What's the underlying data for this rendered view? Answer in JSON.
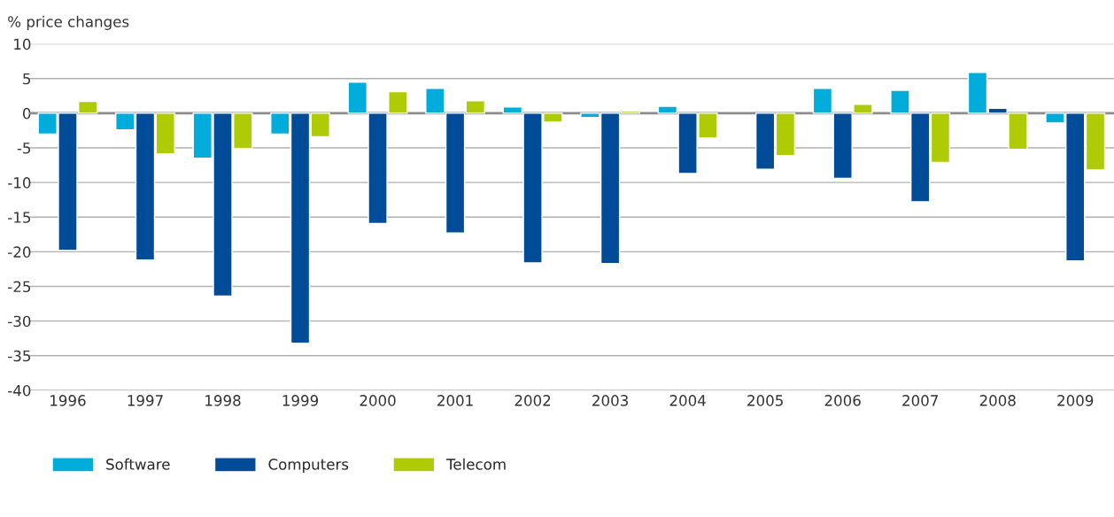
{
  "chart_data": {
    "type": "bar",
    "ylabel": "% price changes",
    "categories": [
      "1996",
      "1997",
      "1998",
      "1999",
      "2000",
      "2001",
      "2002",
      "2003",
      "2004",
      "2005",
      "2006",
      "2007",
      "2008",
      "2009"
    ],
    "series": [
      {
        "name": "Software",
        "color": "#00acd9",
        "values": [
          -3.0,
          -2.4,
          -6.5,
          -3.0,
          4.5,
          3.6,
          0.9,
          -0.6,
          1.0,
          null,
          3.6,
          3.3,
          5.9,
          -1.4
        ]
      },
      {
        "name": "Computers",
        "color": "#004c99",
        "values": [
          -19.8,
          -21.2,
          -26.4,
          -33.2,
          -15.9,
          -17.3,
          -21.6,
          -21.7,
          -8.7,
          -8.1,
          -9.4,
          -12.8,
          0.7,
          -21.3
        ]
      },
      {
        "name": "Telecom",
        "color": "#afcb05",
        "values": [
          1.7,
          -5.9,
          -5.1,
          -3.4,
          3.1,
          1.8,
          -1.3,
          0.3,
          -3.6,
          -6.1,
          1.3,
          -7.1,
          -5.2,
          -8.2
        ]
      }
    ],
    "ylim": [
      -40,
      10
    ],
    "yticks": [
      -40,
      -35,
      -30,
      -25,
      -20,
      -15,
      -10,
      -5,
      0,
      5,
      10
    ],
    "grid": "y",
    "legend": "bottom left",
    "ref_lines": [
      {
        "axis": "y",
        "value": 0,
        "color": "#8c8c8c"
      }
    ]
  }
}
